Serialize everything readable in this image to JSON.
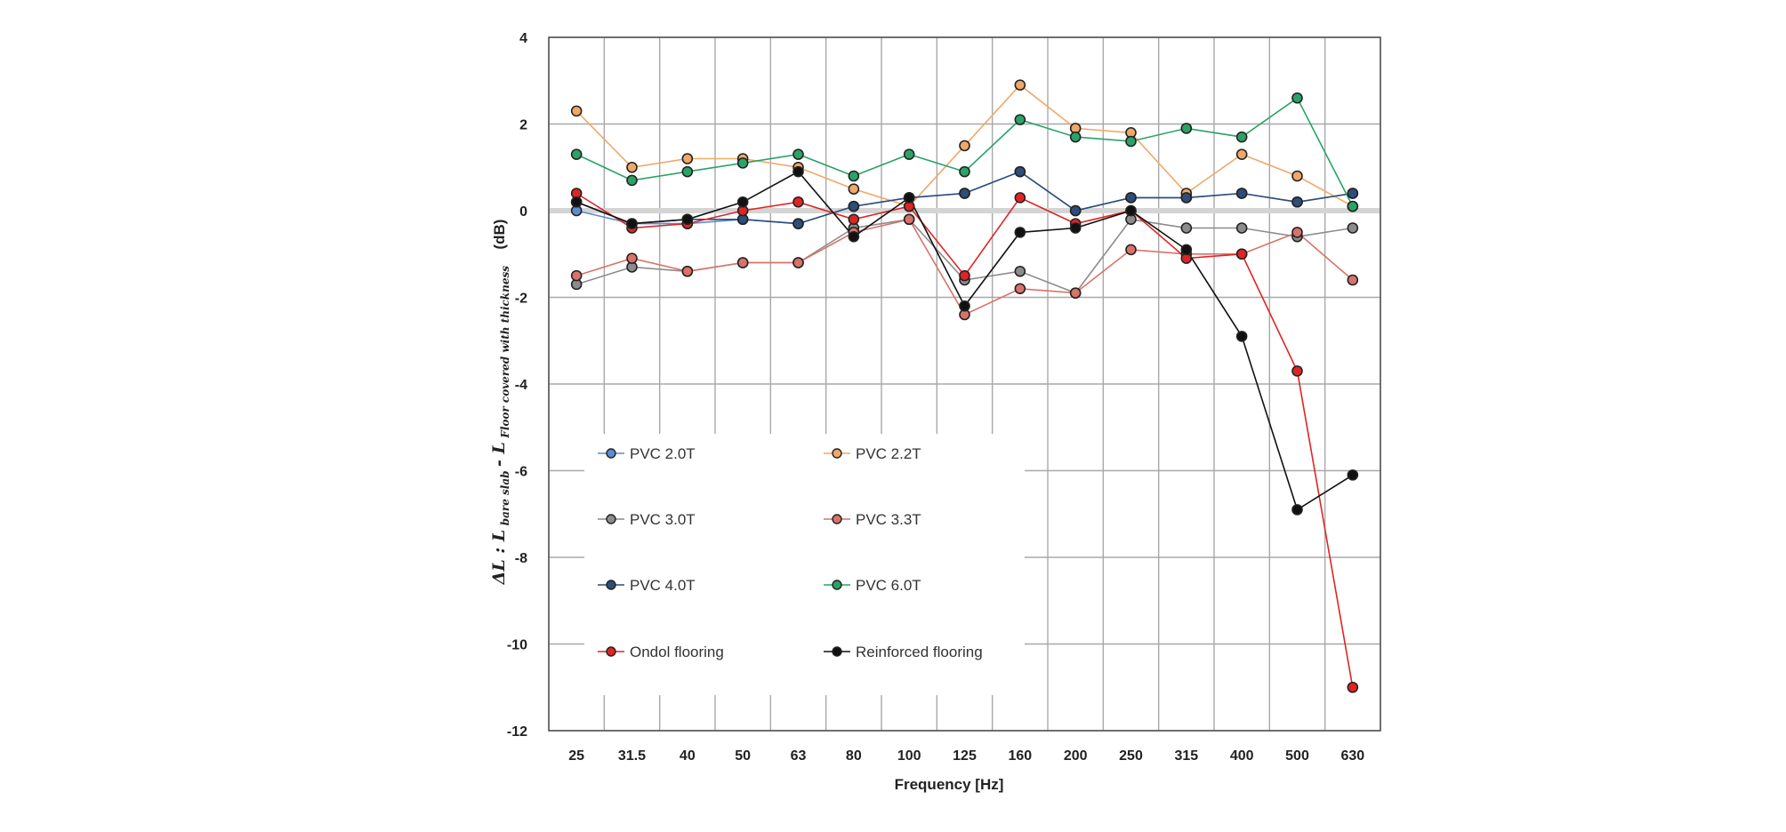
{
  "chart_data": {
    "type": "line",
    "xlabel": "Frequency [Hz]",
    "ylabel": {
      "prefix": "ΔL : L",
      "sub1": "bare slab",
      "middle": " - L",
      "sub2": "Floor covered with thickness",
      "unit": "(dB)"
    },
    "categories": [
      "25",
      "31.5",
      "40",
      "50",
      "63",
      "80",
      "100",
      "125",
      "160",
      "200",
      "250",
      "315",
      "400",
      "500",
      "630"
    ],
    "ylim": [
      -12,
      4
    ],
    "yticks": [
      4,
      2,
      0,
      -2,
      -4,
      -6,
      -8,
      -10,
      -12
    ],
    "grid": true,
    "legend_position": "inside-lower-left",
    "series": [
      {
        "name": "PVC 2.0T",
        "color": "#5b8ccf",
        "values": [
          0.0,
          -0.3,
          -0.3,
          -0.2,
          -0.3,
          0.1,
          0.3,
          0.4,
          0.9,
          0.0,
          0.3,
          0.3,
          0.4,
          0.2,
          0.4
        ]
      },
      {
        "name": "PVC 2.2T",
        "color": "#f0a868",
        "values": [
          2.3,
          1.0,
          1.2,
          1.2,
          1.0,
          0.5,
          0.1,
          1.5,
          2.9,
          1.9,
          1.8,
          0.4,
          1.3,
          0.8,
          0.1
        ]
      },
      {
        "name": "PVC 3.0T",
        "color": "#8c8c8c",
        "values": [
          -1.7,
          -1.3,
          -1.4,
          -1.2,
          -1.2,
          -0.4,
          -0.2,
          -1.6,
          -1.4,
          -1.9,
          -0.2,
          -0.4,
          -0.4,
          -0.6,
          -0.4
        ]
      },
      {
        "name": "PVC 3.3T",
        "color": "#d9726a",
        "values": [
          -1.5,
          -1.1,
          -1.4,
          -1.2,
          -1.2,
          -0.5,
          -0.2,
          -2.4,
          -1.8,
          -1.9,
          -0.9,
          -1.0,
          -1.0,
          -0.5,
          -1.6
        ]
      },
      {
        "name": "PVC 4.0T",
        "color": "#2e4d7a",
        "values": [
          0.2,
          -0.3,
          -0.2,
          -0.2,
          -0.3,
          0.1,
          0.3,
          0.4,
          0.9,
          0.0,
          0.3,
          0.3,
          0.4,
          0.2,
          0.4
        ]
      },
      {
        "name": "PVC 6.0T",
        "color": "#2aa367",
        "values": [
          1.3,
          0.7,
          0.9,
          1.1,
          1.3,
          0.8,
          1.3,
          0.9,
          2.1,
          1.7,
          1.6,
          1.9,
          1.7,
          2.6,
          0.1
        ]
      },
      {
        "name": "Ondol flooring",
        "color": "#e02424",
        "values": [
          0.4,
          -0.4,
          -0.3,
          0.0,
          0.2,
          -0.2,
          0.1,
          -1.5,
          0.3,
          -0.3,
          0.0,
          -1.1,
          -1.0,
          -3.7,
          -11.0
        ]
      },
      {
        "name": "Reinforced flooring",
        "color": "#111111",
        "values": [
          0.2,
          -0.3,
          -0.2,
          0.2,
          0.9,
          -0.6,
          0.3,
          -2.2,
          -0.5,
          -0.4,
          0.0,
          -0.9,
          -2.9,
          -6.9,
          -6.1
        ]
      }
    ]
  }
}
